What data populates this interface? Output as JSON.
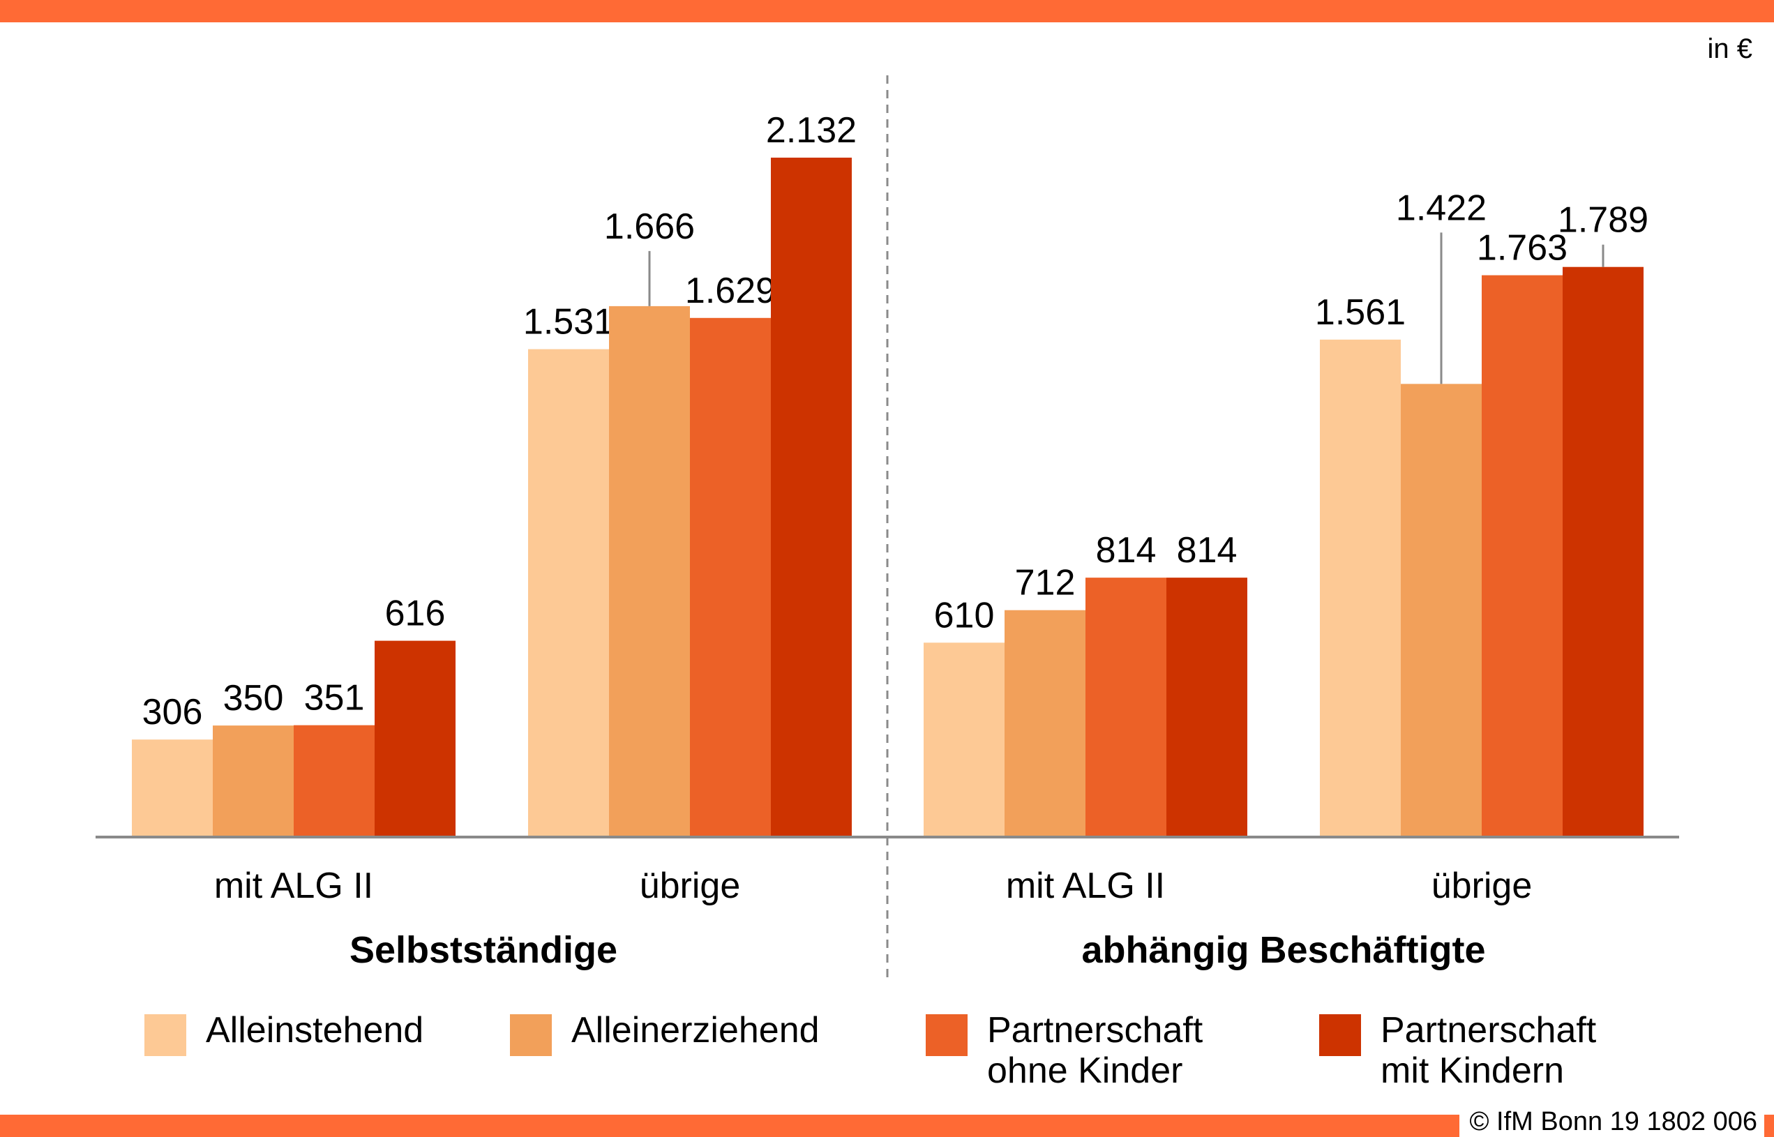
{
  "unit": "in €",
  "credit": "© IfM Bonn 19 1802 006",
  "colors": [
    "#fdc995",
    "#f2a05a",
    "#ec6127",
    "#cd3300"
  ],
  "chart_data": {
    "type": "bar",
    "unit": "in €",
    "groups": [
      "Selbstständige",
      "abhängig Beschäftigte"
    ],
    "categories": [
      "mit ALG II",
      "übrige",
      "mit ALG II",
      "übrige"
    ],
    "category_group": [
      0,
      0,
      1,
      1
    ],
    "series": [
      {
        "name": "Alleinstehend",
        "values": [
          306,
          1531,
          610,
          1561
        ],
        "labels": [
          "306",
          "1.531",
          "610",
          "1.561"
        ]
      },
      {
        "name": "Alleinerziehend",
        "values": [
          350,
          1666,
          712,
          1422
        ],
        "labels": [
          "350",
          "1.666",
          "712",
          "1.422"
        ]
      },
      {
        "name": "Partnerschaft ohne Kinder",
        "values": [
          351,
          1629,
          814,
          1763
        ],
        "labels": [
          "351",
          "1.629",
          "814",
          "1.763"
        ]
      },
      {
        "name": "Partnerschaft mit Kindern",
        "values": [
          616,
          2132,
          814,
          1789
        ],
        "labels": [
          "616",
          "2.132",
          "814",
          "1.789"
        ]
      }
    ],
    "ylim": [
      0,
      2400
    ],
    "grid": false
  },
  "legend": [
    {
      "label": "Alleinstehend"
    },
    {
      "label": "Alleinerziehend"
    },
    {
      "label": "Partnerschaft\nohne Kinder"
    },
    {
      "label": "Partnerschaft\nmit Kindern"
    }
  ]
}
